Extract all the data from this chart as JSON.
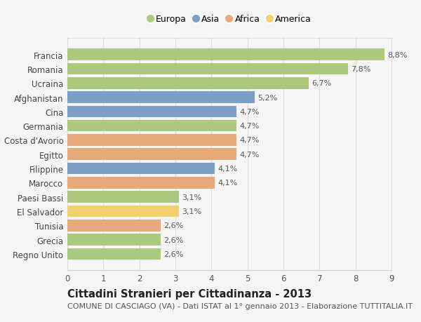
{
  "categories": [
    "Francia",
    "Romania",
    "Ucraina",
    "Afghanistan",
    "Cina",
    "Germania",
    "Costa d'Avorio",
    "Egitto",
    "Filippine",
    "Marocco",
    "Paesi Bassi",
    "El Salvador",
    "Tunisia",
    "Grecia",
    "Regno Unito"
  ],
  "values": [
    8.8,
    7.8,
    6.7,
    5.2,
    4.7,
    4.7,
    4.7,
    4.7,
    4.1,
    4.1,
    3.1,
    3.1,
    2.6,
    2.6,
    2.6
  ],
  "labels": [
    "8,8%",
    "7,8%",
    "6,7%",
    "5,2%",
    "4,7%",
    "4,7%",
    "4,7%",
    "4,7%",
    "4,1%",
    "4,1%",
    "3,1%",
    "3,1%",
    "2,6%",
    "2,6%",
    "2,6%"
  ],
  "continents": [
    "Europa",
    "Europa",
    "Europa",
    "Asia",
    "Asia",
    "Europa",
    "Africa",
    "Africa",
    "Asia",
    "Africa",
    "Europa",
    "America",
    "Africa",
    "Europa",
    "Europa"
  ],
  "colors": {
    "Europa": "#adc97e",
    "Asia": "#7b9fc7",
    "Africa": "#e8aa7a",
    "America": "#f2d06b"
  },
  "legend_order": [
    "Europa",
    "Asia",
    "Africa",
    "America"
  ],
  "xlim": [
    0,
    9
  ],
  "xticks": [
    0,
    1,
    2,
    3,
    4,
    5,
    6,
    7,
    8,
    9
  ],
  "title": "Cittadini Stranieri per Cittadinanza - 2013",
  "subtitle": "COMUNE DI CASCIAGO (VA) - Dati ISTAT al 1° gennaio 2013 - Elaborazione TUTTITALIA.IT",
  "background_color": "#f5f5f5",
  "bar_height": 0.82,
  "label_fontsize": 8,
  "title_fontsize": 10.5,
  "subtitle_fontsize": 8
}
